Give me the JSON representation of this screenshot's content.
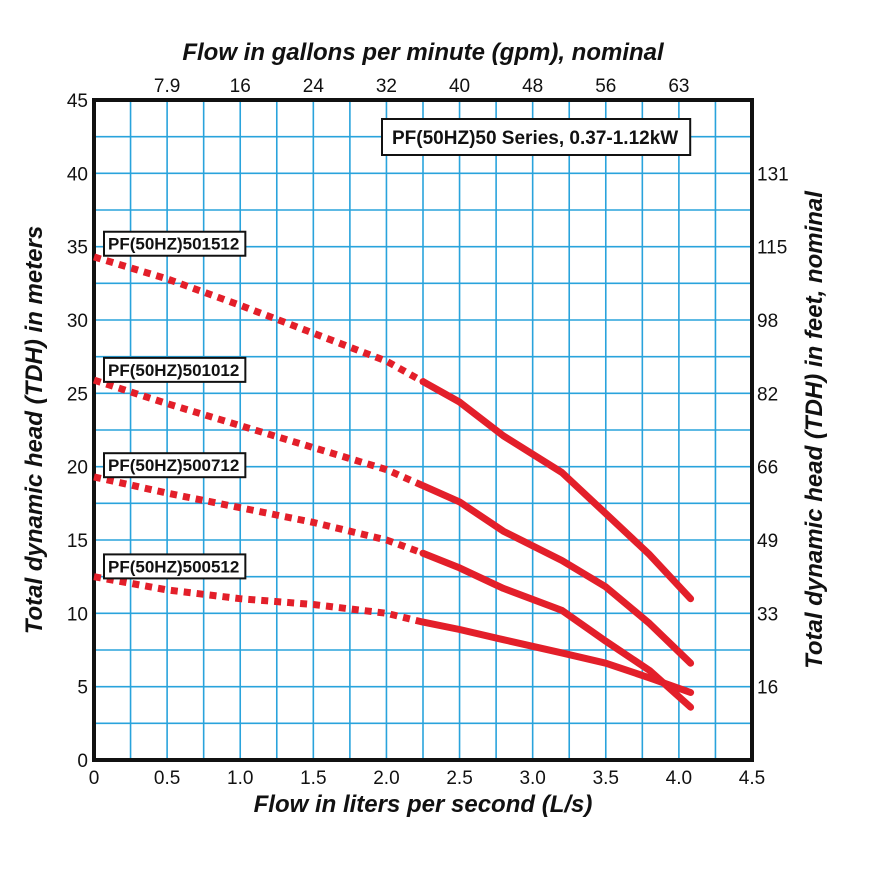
{
  "chart_data": {
    "type": "line",
    "title": "PF(50HZ)50 Series, 0.37-1.12kW",
    "xlabel": "Flow in liters per second (L/s)",
    "ylabel": "Total dynamic head (TDH) in meters",
    "x2label": "Flow in gallons per minute (gpm), nominal",
    "y2label": "Total dynamic head (TDH) in feet, nominal",
    "xlim": [
      0,
      4.5
    ],
    "ylim": [
      0,
      45
    ],
    "grid": true,
    "x_ticks": [
      {
        "v": 0,
        "label": "0"
      },
      {
        "v": 0.5,
        "label": "0.5"
      },
      {
        "v": 1.0,
        "label": "1.0"
      },
      {
        "v": 1.5,
        "label": "1.5"
      },
      {
        "v": 2.0,
        "label": "2.0"
      },
      {
        "v": 2.5,
        "label": "2.5"
      },
      {
        "v": 3.0,
        "label": "3.0"
      },
      {
        "v": 3.5,
        "label": "3.5"
      },
      {
        "v": 4.0,
        "label": "4.0"
      },
      {
        "v": 4.5,
        "label": "4.5"
      }
    ],
    "y_ticks": [
      {
        "v": 0,
        "label": "0"
      },
      {
        "v": 5,
        "label": "5"
      },
      {
        "v": 10,
        "label": "10"
      },
      {
        "v": 15,
        "label": "15"
      },
      {
        "v": 20,
        "label": "20"
      },
      {
        "v": 25,
        "label": "25"
      },
      {
        "v": 30,
        "label": "30"
      },
      {
        "v": 35,
        "label": "35"
      },
      {
        "v": 40,
        "label": "40"
      },
      {
        "v": 45,
        "label": "45"
      }
    ],
    "x2_ticks": [
      {
        "v": 0.5,
        "label": "7.9"
      },
      {
        "v": 1.0,
        "label": "16"
      },
      {
        "v": 1.5,
        "label": "24"
      },
      {
        "v": 2.0,
        "label": "32"
      },
      {
        "v": 2.5,
        "label": "40"
      },
      {
        "v": 3.0,
        "label": "48"
      },
      {
        "v": 3.5,
        "label": "56"
      },
      {
        "v": 4.0,
        "label": "63"
      }
    ],
    "y2_ticks": [
      {
        "v": 5,
        "label": "16"
      },
      {
        "v": 10,
        "label": "33"
      },
      {
        "v": 15,
        "label": "49"
      },
      {
        "v": 20,
        "label": "66"
      },
      {
        "v": 25,
        "label": "82"
      },
      {
        "v": 30,
        "label": "98"
      },
      {
        "v": 35,
        "label": "115"
      },
      {
        "v": 40,
        "label": "131"
      }
    ],
    "series_color": "#e31f2a",
    "grid_color": "#29a3dc",
    "series": [
      {
        "name": "PF(50HZ)501512",
        "label_at": 35.2,
        "dotted": [
          [
            0,
            34.3
          ],
          [
            0.5,
            32.8
          ],
          [
            1.0,
            31.0
          ],
          [
            1.5,
            29.1
          ],
          [
            2.0,
            27.2
          ],
          [
            2.25,
            25.8
          ]
        ],
        "solid": [
          [
            2.25,
            25.8
          ],
          [
            2.5,
            24.4
          ],
          [
            2.8,
            22.1
          ],
          [
            3.2,
            19.6
          ],
          [
            3.5,
            16.8
          ],
          [
            3.8,
            14.0
          ],
          [
            4.08,
            11.0
          ]
        ]
      },
      {
        "name": "PF(50HZ)501012",
        "label_at": 26.6,
        "dotted": [
          [
            0,
            25.9
          ],
          [
            0.5,
            24.3
          ],
          [
            1.0,
            22.8
          ],
          [
            1.5,
            21.3
          ],
          [
            2.0,
            19.8
          ],
          [
            2.25,
            18.7
          ]
        ],
        "solid": [
          [
            2.25,
            18.7
          ],
          [
            2.5,
            17.6
          ],
          [
            2.8,
            15.6
          ],
          [
            3.2,
            13.6
          ],
          [
            3.5,
            11.8
          ],
          [
            3.8,
            9.3
          ],
          [
            4.08,
            6.6
          ]
        ]
      },
      {
        "name": "PF(50HZ)500712",
        "label_at": 20.1,
        "dotted": [
          [
            0,
            19.3
          ],
          [
            0.5,
            18.2
          ],
          [
            1.0,
            17.2
          ],
          [
            1.5,
            16.2
          ],
          [
            2.0,
            15.0
          ],
          [
            2.25,
            14.1
          ]
        ],
        "solid": [
          [
            2.25,
            14.1
          ],
          [
            2.5,
            13.1
          ],
          [
            2.8,
            11.7
          ],
          [
            3.2,
            10.2
          ],
          [
            3.5,
            8.1
          ],
          [
            3.8,
            6.1
          ],
          [
            4.08,
            3.6
          ]
        ]
      },
      {
        "name": "PF(50HZ)500512",
        "label_at": 13.2,
        "dotted": [
          [
            0,
            12.5
          ],
          [
            0.5,
            11.6
          ],
          [
            1.0,
            11.0
          ],
          [
            1.5,
            10.6
          ],
          [
            2.0,
            10.0
          ],
          [
            2.25,
            9.4
          ]
        ],
        "solid": [
          [
            2.25,
            9.4
          ],
          [
            2.5,
            8.9
          ],
          [
            2.8,
            8.2
          ],
          [
            3.2,
            7.3
          ],
          [
            3.5,
            6.6
          ],
          [
            3.8,
            5.6
          ],
          [
            4.08,
            4.6
          ]
        ]
      }
    ]
  }
}
